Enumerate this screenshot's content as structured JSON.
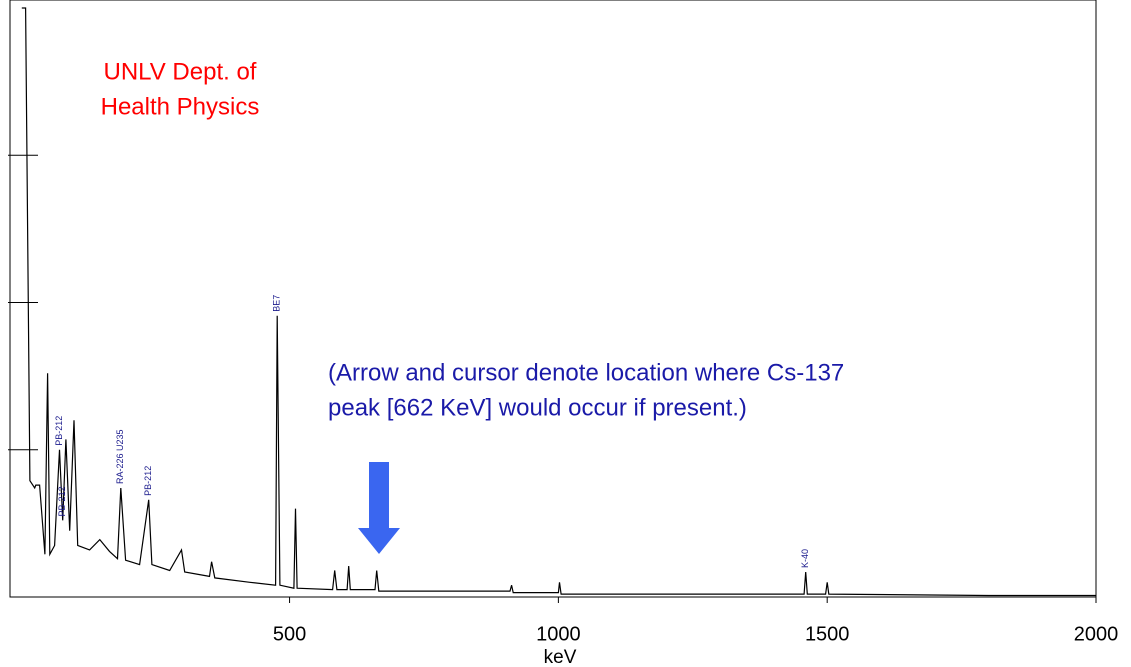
{
  "chart_data": {
    "type": "line",
    "xlabel": "keV",
    "xlim": [
      -20,
      2000
    ],
    "xticks": [
      500,
      1000,
      1500,
      2000
    ],
    "ylim": [
      0,
      4
    ],
    "yticks": [
      1,
      2,
      3
    ],
    "series": [
      {
        "color": "#000000",
        "x": [
          2,
          9,
          17,
          26,
          28,
          35,
          45,
          50,
          54,
          63,
          72,
          78,
          84,
          91,
          99,
          106,
          128,
          147,
          165,
          180,
          186,
          195,
          221,
          238,
          244,
          277,
          299,
          305,
          351,
          355,
          361,
          426,
          474,
          477,
          482,
          508,
          511,
          514,
          580,
          584,
          588,
          607,
          610,
          613,
          659,
          662,
          666,
          797,
          910,
          913,
          916,
          1000,
          1002,
          1005,
          1300,
          1457,
          1460,
          1463,
          1497,
          1500,
          1503,
          1800,
          2000
        ],
        "values": [
          4,
          4,
          0.79,
          0.74,
          0.76,
          0.76,
          0.29,
          1.52,
          0.29,
          0.35,
          1.0,
          0.52,
          1.07,
          0.45,
          1.2,
          0.35,
          0.32,
          0.39,
          0.31,
          0.26,
          0.74,
          0.25,
          0.22,
          0.66,
          0.22,
          0.18,
          0.32,
          0.17,
          0.14,
          0.24,
          0.13,
          0.1,
          0.08,
          1.91,
          0.08,
          0.06,
          0.6,
          0.06,
          0.05,
          0.18,
          0.05,
          0.05,
          0.21,
          0.05,
          0.05,
          0.18,
          0.04,
          0.04,
          0.04,
          0.08,
          0.03,
          0.03,
          0.1,
          0.02,
          0.02,
          0.02,
          0.17,
          0.02,
          0.02,
          0.1,
          0.02,
          0.01,
          0.01
        ]
      }
    ],
    "annotations": [
      {
        "text": "PB-212",
        "x": 72
      },
      {
        "text": "PB-212",
        "x": 78
      },
      {
        "text": "RA-226 U235",
        "x": 186
      },
      {
        "text": "PB-212",
        "x": 238
      },
      {
        "text": "BE7",
        "x": 477
      },
      {
        "text": "K-40",
        "x": 1460
      }
    ],
    "lab_label": [
      "UNLV Dept. of",
      "Health Physics"
    ],
    "note": [
      "(Arrow and cursor denote location where Cs-137",
      "peak [662 KeV] would occur if present.)"
    ]
  }
}
